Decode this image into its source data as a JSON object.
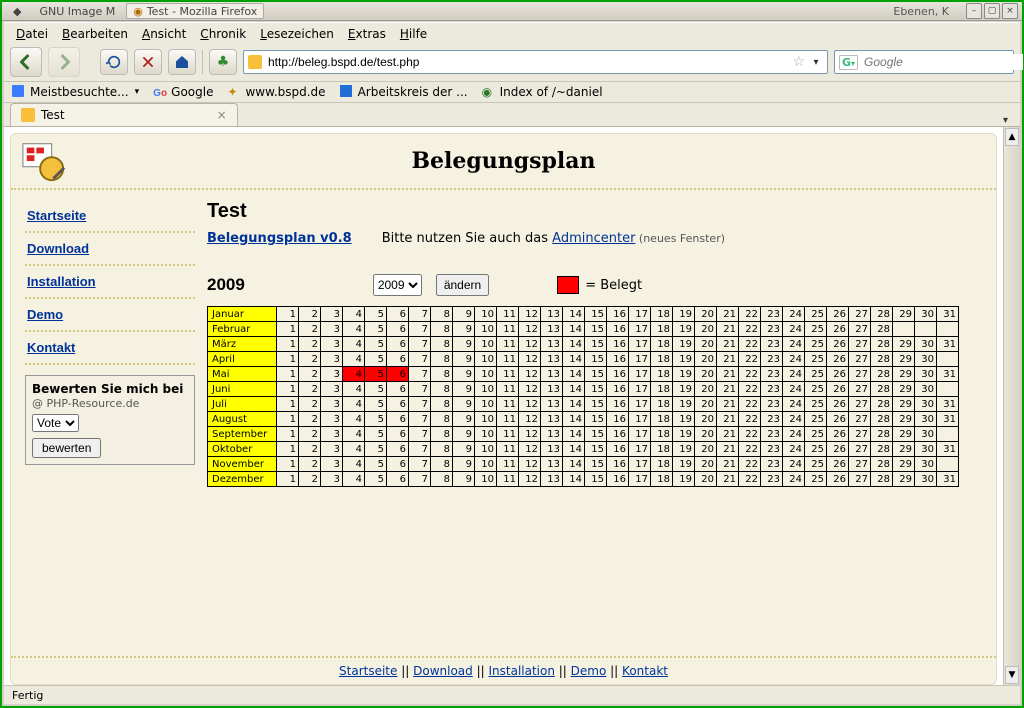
{
  "window": {
    "title": "Test - Mozilla Firefox",
    "taskbar_left": "GNU Image M",
    "taskbar_right": "Ebenen, K"
  },
  "menubar": [
    "Datei",
    "Bearbeiten",
    "Ansicht",
    "Chronik",
    "Lesezeichen",
    "Extras",
    "Hilfe"
  ],
  "toolbar": {
    "url": "http://beleg.bspd.de/test.php",
    "search_placeholder": "Google",
    "search_engine_letter": "G"
  },
  "bookmarks": [
    {
      "label": "Meistbesuchte...",
      "icon": "blue-doc",
      "has_dd": true
    },
    {
      "label": "Google",
      "icon": "google"
    },
    {
      "label": "www.bspd.de",
      "icon": "star"
    },
    {
      "label": "Arbeitskreis der ...",
      "icon": "blue-square"
    },
    {
      "label": "Index of /~daniel",
      "icon": "globe"
    }
  ],
  "tab": {
    "label": "Test"
  },
  "page": {
    "title": "Belegungsplan",
    "heading": "Test",
    "version_link": "Belegungsplan v0.8",
    "admin_hint_pre": "Bitte nutzen Sie auch das ",
    "admin_link": "Admincenter",
    "admin_hint_post": " (neues Fenster)",
    "year": "2009",
    "year_select": "2009",
    "change_btn": "ändern",
    "legend_label": "= Belegt",
    "footer_links": [
      "Startseite",
      "Download",
      "Installation",
      "Demo",
      "Kontakt"
    ]
  },
  "sidebar_links": [
    "Startseite",
    "Download",
    "Installation",
    "Demo",
    "Kontakt"
  ],
  "votebox": {
    "title": "Bewerten Sie mich bei",
    "at": "@ PHP-Resource.de",
    "select": "Vote",
    "button": "bewerten"
  },
  "calendar": {
    "months": [
      {
        "name": "Januar",
        "days": 31
      },
      {
        "name": "Februar",
        "days": 28
      },
      {
        "name": "März",
        "days": 31
      },
      {
        "name": "April",
        "days": 30
      },
      {
        "name": "Mai",
        "days": 31,
        "occupied": [
          4,
          5,
          6
        ]
      },
      {
        "name": "Juni",
        "days": 30
      },
      {
        "name": "Juli",
        "days": 31
      },
      {
        "name": "August",
        "days": 31
      },
      {
        "name": "September",
        "days": 30
      },
      {
        "name": "Oktober",
        "days": 31
      },
      {
        "name": "November",
        "days": 30
      },
      {
        "name": "Dezember",
        "days": 31
      }
    ],
    "max_days": 31,
    "colors": {
      "month_bg": "#ffff00",
      "occupied_bg": "#ff0000",
      "border": "#000000"
    }
  },
  "statusbar": "Fertig"
}
